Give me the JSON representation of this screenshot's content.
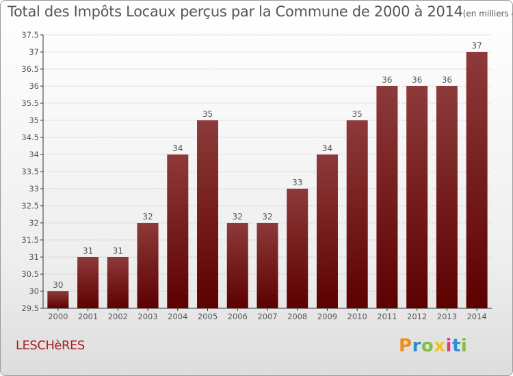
{
  "header": {
    "title": "Total des Impôts Locaux perçus par la Commune de 2000 à 2014",
    "unit": "(en milliers d'€)"
  },
  "footer": {
    "commune": "LESCHèRES",
    "logo_text": [
      "P",
      "r",
      "o",
      "x",
      "i",
      "t",
      "i"
    ]
  },
  "colors": {
    "bar_top": "#8e3a3a",
    "bar_bottom": "#5c0000",
    "axis": "#333333",
    "grid": "#bbbbbb",
    "text": "#555555"
  },
  "chart_data": {
    "type": "bar",
    "title": "Total des Impôts Locaux perçus par la Commune de 2000 à 2014",
    "xlabel": "",
    "ylabel": "",
    "categories": [
      "2000",
      "2001",
      "2002",
      "2003",
      "2004",
      "2005",
      "2006",
      "2007",
      "2008",
      "2009",
      "2010",
      "2011",
      "2012",
      "2013",
      "2014"
    ],
    "values": [
      30,
      31,
      31,
      32,
      34,
      35,
      32,
      32,
      33,
      34,
      35,
      36,
      36,
      36,
      37
    ],
    "ylim": [
      29.5,
      37.5
    ],
    "yticks": [
      "29.5",
      "30",
      "30.5",
      "31",
      "31.5",
      "32",
      "32.5",
      "33",
      "33.5",
      "34",
      "34.5",
      "35",
      "35.5",
      "36",
      "36.5",
      "37",
      "37.5"
    ],
    "grid": true
  }
}
